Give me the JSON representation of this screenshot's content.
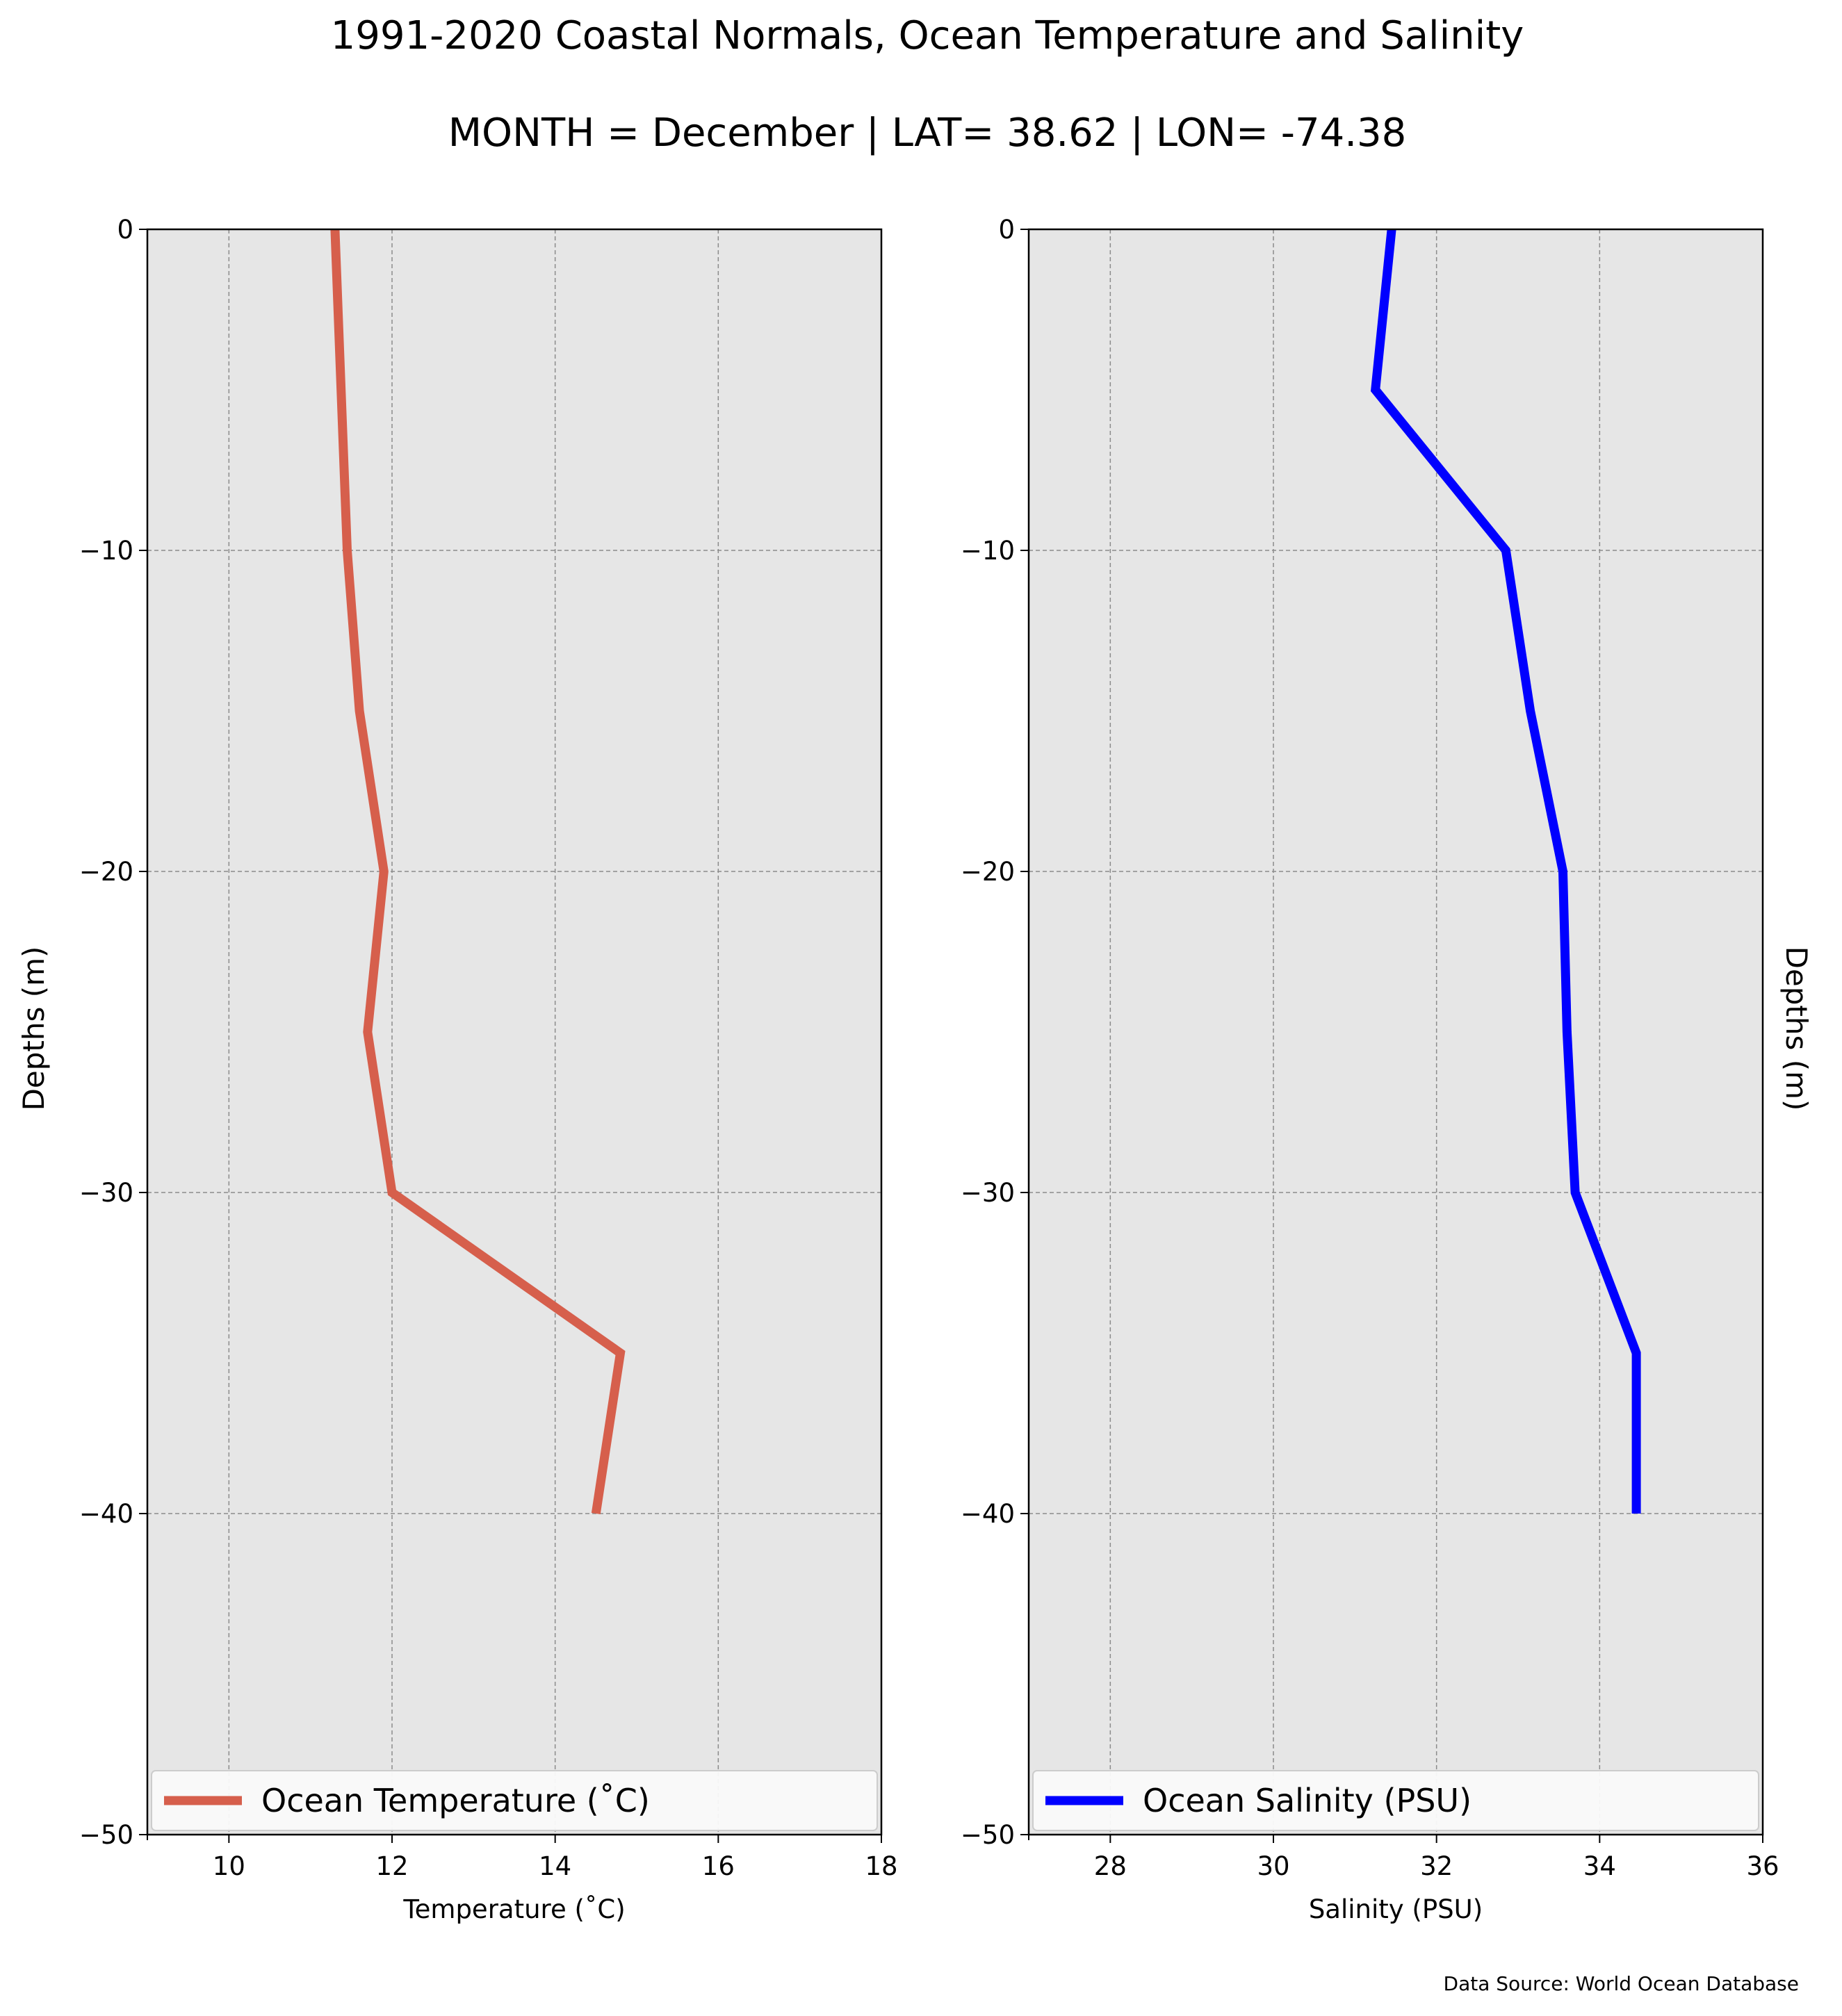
{
  "title": "1991-2020 Coastal Normals, Ocean Temperature and Salinity",
  "subtitle": "MONTH = December | LAT= 38.62 | LON= -74.38",
  "source": "Data Source: World Ocean Database",
  "colors": {
    "background": "#e6e6e6",
    "temperature": "#d65f4c",
    "salinity": "#0000ff",
    "grid": "#8c8c8c"
  },
  "chart_data": [
    {
      "type": "line",
      "orientation": "vertical-profile",
      "xlabel": "Temperature ($^\\circ$C)",
      "xlabel_display": "Temperature (˚C)",
      "ylabel": "Depths (m)",
      "xlim": [
        9,
        18
      ],
      "ylim": [
        -50,
        0
      ],
      "xticks": [
        "10",
        "12",
        "14",
        "16",
        "18"
      ],
      "yticks": [
        "0",
        "−10",
        "−20",
        "−30",
        "−40",
        "−50"
      ],
      "grid": true,
      "legend": {
        "placement": "lower-center",
        "label": "Ocean Temperature (˚C)"
      },
      "series": [
        {
          "name": "Ocean Temperature (˚C)",
          "color": "#d65f4c",
          "points": [
            {
              "x": 11.3,
              "y": 0
            },
            {
              "x": 11.45,
              "y": -10
            },
            {
              "x": 11.6,
              "y": -15
            },
            {
              "x": 11.9,
              "y": -20
            },
            {
              "x": 11.7,
              "y": -25
            },
            {
              "x": 12.0,
              "y": -30
            },
            {
              "x": 14.8,
              "y": -35
            },
            {
              "x": 14.5,
              "y": -40
            }
          ]
        }
      ]
    },
    {
      "type": "line",
      "orientation": "vertical-profile",
      "xlabel": "Salinity (PSU)",
      "ylabel": "Depths (m)",
      "xlim": [
        27,
        36
      ],
      "ylim": [
        -50,
        0
      ],
      "xticks": [
        "28",
        "30",
        "32",
        "34",
        "36"
      ],
      "yticks": [
        "0",
        "−10",
        "−20",
        "−30",
        "−40",
        "−50"
      ],
      "grid": true,
      "legend": {
        "placement": "lower-center",
        "label": "Ocean Salinity (PSU)"
      },
      "series": [
        {
          "name": "Ocean Salinity (PSU)",
          "color": "#0000ff",
          "points": [
            {
              "x": 31.45,
              "y": 0
            },
            {
              "x": 31.25,
              "y": -5
            },
            {
              "x": 32.85,
              "y": -10
            },
            {
              "x": 33.15,
              "y": -15
            },
            {
              "x": 33.55,
              "y": -20
            },
            {
              "x": 33.6,
              "y": -25
            },
            {
              "x": 33.7,
              "y": -30
            },
            {
              "x": 34.45,
              "y": -35
            },
            {
              "x": 34.45,
              "y": -40
            }
          ]
        }
      ]
    }
  ]
}
